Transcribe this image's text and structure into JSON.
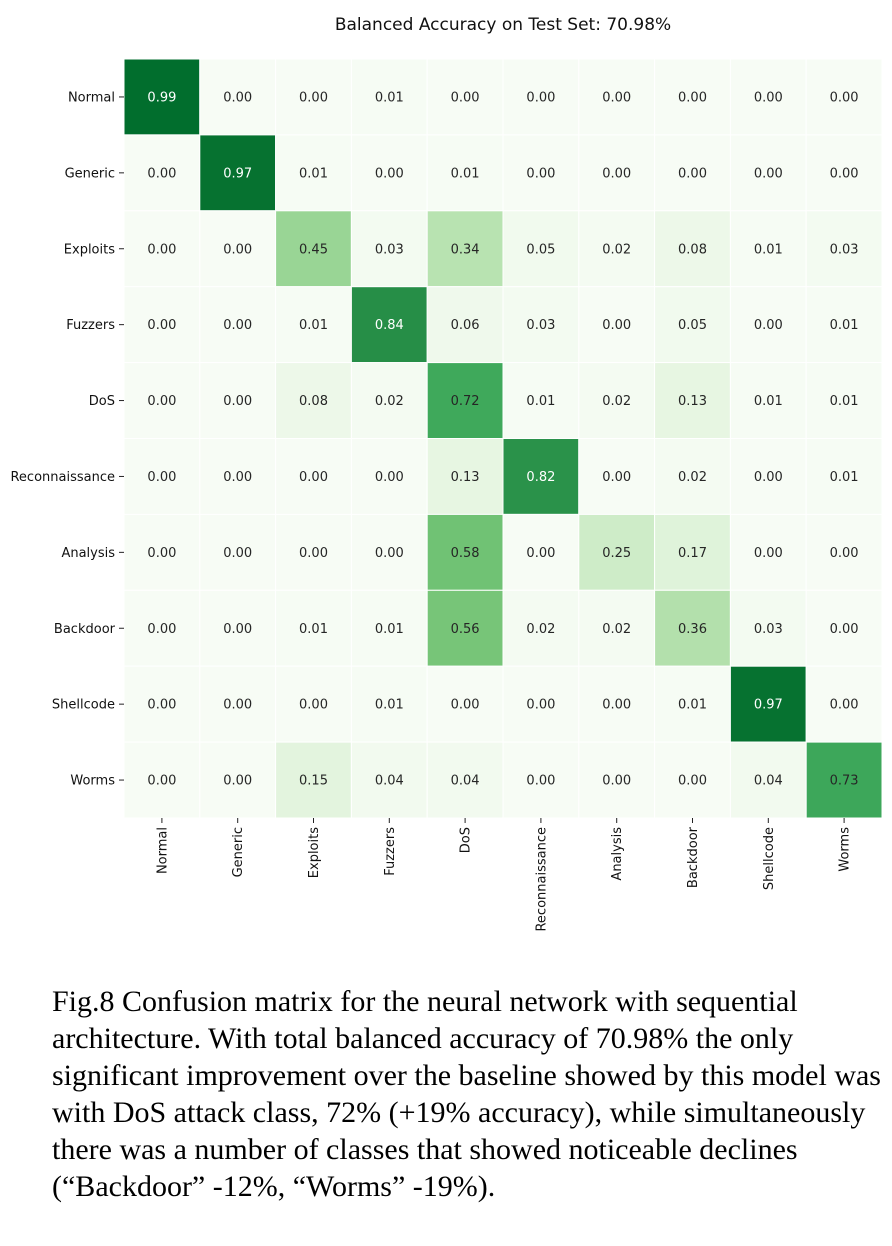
{
  "chart_data": {
    "type": "heatmap",
    "title": "Balanced Accuracy on Test Set: 70.98%",
    "row_labels": [
      "Normal",
      "Generic",
      "Exploits",
      "Fuzzers",
      "DoS",
      "Reconnaissance",
      "Analysis",
      "Backdoor",
      "Shellcode",
      "Worms"
    ],
    "col_labels": [
      "Normal",
      "Generic",
      "Exploits",
      "Fuzzers",
      "DoS",
      "Reconnaissance",
      "Analysis",
      "Backdoor",
      "Shellcode",
      "Worms"
    ],
    "values": [
      [
        0.99,
        0.0,
        0.0,
        0.01,
        0.0,
        0.0,
        0.0,
        0.0,
        0.0,
        0.0
      ],
      [
        0.0,
        0.97,
        0.01,
        0.0,
        0.01,
        0.0,
        0.0,
        0.0,
        0.0,
        0.0
      ],
      [
        0.0,
        0.0,
        0.45,
        0.03,
        0.34,
        0.05,
        0.02,
        0.08,
        0.01,
        0.03
      ],
      [
        0.0,
        0.0,
        0.01,
        0.84,
        0.06,
        0.03,
        0.0,
        0.05,
        0.0,
        0.01
      ],
      [
        0.0,
        0.0,
        0.08,
        0.02,
        0.72,
        0.01,
        0.02,
        0.13,
        0.01,
        0.01
      ],
      [
        0.0,
        0.0,
        0.0,
        0.0,
        0.13,
        0.82,
        0.0,
        0.02,
        0.0,
        0.01
      ],
      [
        0.0,
        0.0,
        0.0,
        0.0,
        0.58,
        0.0,
        0.25,
        0.17,
        0.0,
        0.0
      ],
      [
        0.0,
        0.0,
        0.01,
        0.01,
        0.56,
        0.02,
        0.02,
        0.36,
        0.03,
        0.0
      ],
      [
        0.0,
        0.0,
        0.0,
        0.01,
        0.0,
        0.0,
        0.0,
        0.01,
        0.97,
        0.0
      ],
      [
        0.0,
        0.0,
        0.15,
        0.04,
        0.04,
        0.0,
        0.0,
        0.0,
        0.04,
        0.73
      ]
    ],
    "value_range": [
      0,
      1
    ],
    "colormap": "Greens",
    "colorbar": false,
    "legend": "none"
  },
  "caption": "Fig.8 Confusion matrix for the neural network with sequential architecture. With total balanced accuracy of 70.98% the only significant improvement over the baseline showed by this model was with DoS attack class, 72% (+19% accuracy), while simultaneously there was a number of classes that showed noticeable declines (“Backdoor” -12%, “Worms” -19%)."
}
